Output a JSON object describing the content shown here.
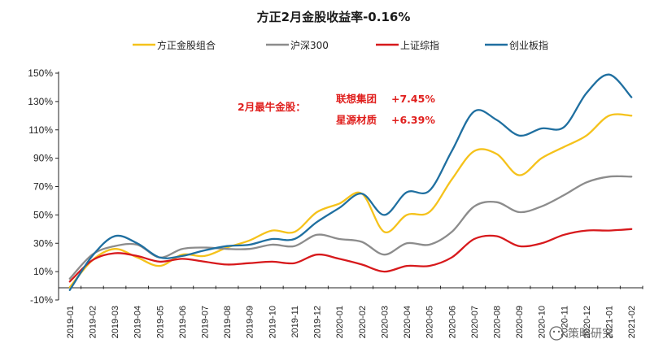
{
  "chart_data": {
    "type": "line",
    "title": "方正2月金股收益率-0.16%",
    "xlabel": "",
    "ylabel": "",
    "ylim": [
      -10,
      150
    ],
    "yticks": [
      -10,
      10,
      30,
      50,
      70,
      90,
      110,
      130,
      150
    ],
    "ytick_labels": [
      "-10%",
      "10%",
      "30%",
      "50%",
      "70%",
      "90%",
      "110%",
      "130%",
      "150%"
    ],
    "categories": [
      "2019-01",
      "2019-02",
      "2019-03",
      "2019-04",
      "2019-05",
      "2019-06",
      "2019-07",
      "2019-08",
      "2019-09",
      "2019-10",
      "2019-11",
      "2019-12",
      "2020-01",
      "2020-02",
      "2020-03",
      "2020-04",
      "2020-05",
      "2020-06",
      "2020-07",
      "2020-08",
      "2020-09",
      "2020-10",
      "2020-11",
      "2020-12",
      "2021-01",
      "2021-02"
    ],
    "legend_position": "top",
    "series": [
      {
        "name": "方正金股组合",
        "color": "#f5c21b",
        "values": [
          -1,
          18,
          26,
          20,
          14,
          22,
          21,
          27,
          32,
          39,
          38,
          52,
          58,
          65,
          38,
          50,
          52,
          75,
          95,
          93,
          78,
          90,
          98,
          106,
          120,
          120
        ]
      },
      {
        "name": "沪深300",
        "color": "#8c8c8c",
        "values": [
          5,
          22,
          28,
          29,
          20,
          26,
          27,
          26,
          26,
          29,
          28,
          36,
          33,
          31,
          22,
          30,
          29,
          38,
          56,
          59,
          52,
          56,
          64,
          73,
          77,
          77
        ]
      },
      {
        "name": "上证综指",
        "color": "#d7191c",
        "values": [
          3,
          18,
          23,
          21,
          17,
          19,
          17,
          15,
          16,
          17,
          16,
          22,
          19,
          15,
          10,
          14,
          14,
          20,
          33,
          35,
          28,
          30,
          36,
          39,
          39,
          40
        ]
      },
      {
        "name": "创业板指",
        "color": "#1f6fa0",
        "values": [
          -3,
          21,
          35,
          30,
          20,
          21,
          25,
          28,
          29,
          33,
          33,
          45,
          55,
          65,
          50,
          66,
          67,
          95,
          123,
          117,
          106,
          111,
          112,
          136,
          149,
          133
        ]
      }
    ],
    "annotations": {
      "label": "2月最牛金股：",
      "items": [
        {
          "name": "联想集团",
          "value": "+7.45%"
        },
        {
          "name": "星源材质",
          "value": "+6.39%"
        }
      ]
    }
  },
  "watermark": {
    "text": "策略研究"
  }
}
